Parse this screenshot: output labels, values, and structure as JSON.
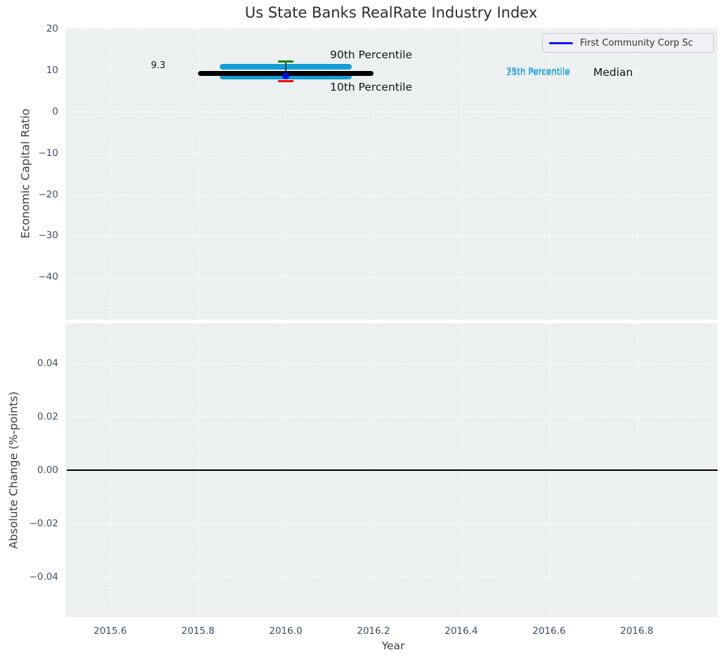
{
  "title": "Us State Banks RealRate Industry Index",
  "legend": {
    "label": "First Community Corp Sc",
    "line_color": "#1414e8"
  },
  "annotations": {
    "p90_label": "90th Percentile",
    "p10_label": "10th Percentile",
    "p75_label": "75th Percentile",
    "p25_label": "25th Percentile",
    "median_label": "Median",
    "median_value_label": "9.3"
  },
  "axes": {
    "x": {
      "label": "Year",
      "ticks": [
        2015.6,
        2015.8,
        2016.0,
        2016.2,
        2016.4,
        2016.6,
        2016.8
      ],
      "tick_labels": [
        "2015.6",
        "2015.8",
        "2016.0",
        "2016.2",
        "2016.4",
        "2016.6",
        "2016.8"
      ]
    },
    "top": {
      "ylabel": "Economic Capital Ratio",
      "yticks": [
        20,
        10,
        0,
        -10,
        -20,
        -30,
        -40
      ],
      "ytick_labels": [
        "20",
        "10",
        "0",
        "−10",
        "−20",
        "−30",
        "−40"
      ]
    },
    "bottom": {
      "ylabel": "Absolute Change (%-points)",
      "yticks": [
        0.04,
        0.02,
        0.0,
        -0.02,
        -0.04
      ],
      "ytick_labels": [
        "0.04",
        "0.02",
        "0.00",
        "−0.02",
        "−0.04"
      ]
    }
  },
  "colors": {
    "plot_background": "#ecf0f1",
    "gridline": "#ffffff",
    "tick_text": "#3e4e63",
    "median": "#000000",
    "iqr_band": "#149fd6",
    "p90_cap": "#068406",
    "p10_cap": "#fb0607",
    "point": "#0b0bdc",
    "whisker": "#2f3a40",
    "zero_line": "#000000"
  },
  "chart_data": [
    {
      "type": "line",
      "panel": "top",
      "title": "Us State Banks RealRate Industry Index",
      "xlabel": "Year",
      "ylabel": "Economic Capital Ratio",
      "xlim": [
        2015.5,
        2016.985
      ],
      "ylim": [
        -50.3,
        20.2
      ],
      "grid": true,
      "legend_position": "upper right",
      "series": [
        {
          "name": "Median",
          "type": "hline",
          "y": 9.3,
          "x_from": 2015.8,
          "x_to": 2016.2,
          "color": "#000000",
          "lw": 7
        },
        {
          "name": "75th Percentile",
          "type": "hline",
          "y": 10.9,
          "x_from": 2015.85,
          "x_to": 2016.15,
          "color": "#149fd6",
          "lw": 8
        },
        {
          "name": "25th Percentile",
          "type": "hline",
          "y": 8.55,
          "x_from": 2015.85,
          "x_to": 2016.15,
          "color": "#149fd6",
          "lw": 8
        },
        {
          "name": "90th Percentile",
          "type": "cap",
          "y": 12.2,
          "x": 2016.0,
          "halfwidth": 0.017,
          "color": "#068406",
          "lw": 3
        },
        {
          "name": "10th Percentile",
          "type": "cap",
          "y": 7.35,
          "x": 2016.0,
          "halfwidth": 0.017,
          "color": "#fb0607",
          "lw": 3
        },
        {
          "name": "First Community Corp Sc",
          "type": "point",
          "x": 2016.0,
          "y": 8.75,
          "yerr_high": 12.2,
          "yerr_low": 7.35,
          "color": "#0b0bdc",
          "size": 10
        }
      ],
      "annotations": [
        {
          "text": "9.3",
          "x": 2015.7,
          "y": 9.3
        },
        {
          "text": "90th Percentile",
          "x": 2016.1,
          "y": 13.5
        },
        {
          "text": "10th Percentile",
          "x": 2016.1,
          "y": 5.8
        },
        {
          "text": "75th Percentile",
          "x": 2016.5,
          "y": 9.6
        },
        {
          "text": "25th Percentile",
          "x": 2016.5,
          "y": 9.4
        },
        {
          "text": "Median",
          "x": 2016.7,
          "y": 9.3
        }
      ]
    },
    {
      "type": "line",
      "panel": "bottom",
      "xlabel": "Year",
      "ylabel": "Absolute Change (%-points)",
      "xlim": [
        2015.5,
        2016.985
      ],
      "ylim": [
        -0.055,
        0.055
      ],
      "grid": true,
      "series": [
        {
          "name": "Zero Line",
          "type": "hline",
          "y": 0.0,
          "x_from": 2015.5,
          "x_to": 2016.985,
          "color": "#000000",
          "lw": 1.5
        }
      ]
    }
  ]
}
